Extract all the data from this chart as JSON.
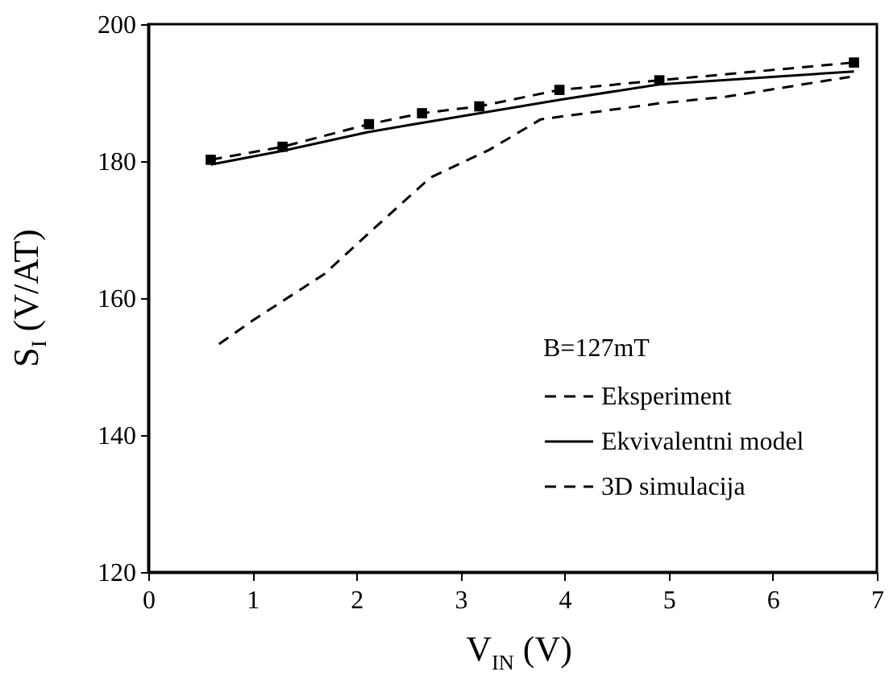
{
  "chart_data": {
    "type": "line",
    "xlabel": "V$_{IN}$ (V)",
    "ylabel": "S$_{I}$ (V/AT)",
    "legend_title": "B=127mT",
    "legend": "bottom right",
    "grid": false,
    "xlim": [
      0,
      7.0
    ],
    "xticks": [
      0,
      1,
      2,
      3,
      4,
      5,
      6,
      7
    ],
    "ylim": [
      120,
      200
    ],
    "yticks": [
      120,
      140,
      160,
      180,
      200
    ],
    "series": [
      {
        "name": "Eksperiment",
        "color": "#000000",
        "line_style": "dashed",
        "marker": "square",
        "x": [
          0.6,
          1.29,
          2.12,
          2.63,
          3.18,
          3.95,
          4.91,
          6.78
        ],
        "values": [
          180.2,
          182.1,
          185.4,
          187,
          188,
          190.4,
          191.8,
          194.4
        ]
      },
      {
        "name": "Ekvivalentni model",
        "color": "#000000",
        "line_style": "solid",
        "marker": "none",
        "x": [
          0.6,
          1.29,
          2.1,
          2.63,
          3.97,
          4.91,
          6.78
        ],
        "values": [
          179.5,
          181.5,
          184.2,
          185.6,
          189,
          191.2,
          193.1
        ]
      },
      {
        "name": "3D simulacija",
        "color": "#000000",
        "line_style": "dashed",
        "marker": "none",
        "x": [
          0.68,
          1.0,
          1.69,
          2.2,
          2.71,
          3.27,
          3.77,
          4.89,
          5.55,
          6.74
        ],
        "values": [
          153.3,
          156.7,
          163.5,
          170.6,
          177.6,
          181.6,
          186.1,
          188.4,
          189.4,
          192.3
        ]
      }
    ]
  }
}
